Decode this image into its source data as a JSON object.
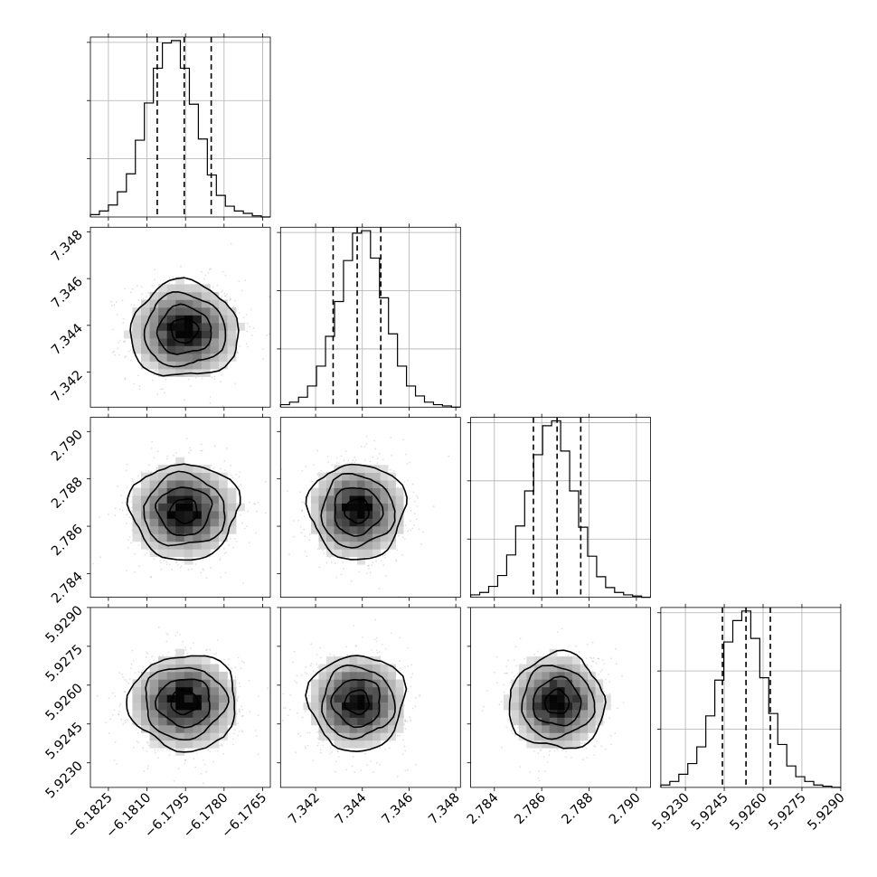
{
  "chart_data": {
    "type": "corner",
    "n_params": 4,
    "grid": true,
    "colors": {
      "line": "#000000",
      "grid": "#b0b0b0",
      "points": "#9a9a9a"
    },
    "parameters": [
      {
        "index": 0,
        "range": [
          -6.1832,
          -6.1762
        ],
        "ticks": [
          -6.1825,
          -6.181,
          -6.1795,
          -6.178,
          -6.1765
        ],
        "tick_labels": [
          "−6.1825",
          "−6.1810",
          "−6.1795",
          "−6.1780",
          "−6.1765"
        ],
        "mean": -6.17955,
        "sigma": 0.00105,
        "quantiles": [
          -6.1806,
          -6.17955,
          -6.1785
        ],
        "histogram": {
          "edges_start": -6.1832,
          "bin_width": 0.00035,
          "counts": [
            2,
            5,
            10,
            21,
            36,
            64,
            95,
            124,
            145,
            147,
            124,
            94,
            65,
            35,
            18,
            9,
            5,
            3,
            1,
            0
          ]
        }
      },
      {
        "index": 1,
        "range": [
          7.3405,
          7.3482
        ],
        "ticks": [
          7.342,
          7.344,
          7.346,
          7.348
        ],
        "tick_labels": [
          "7.342",
          "7.344",
          "7.346",
          "7.348"
        ],
        "mean": 7.34378,
        "sigma": 0.00103,
        "quantiles": [
          7.34275,
          7.34378,
          7.34479
        ],
        "histogram": {
          "edges_start": 7.3405,
          "bin_width": 0.000385,
          "counts": [
            2,
            4,
            8,
            17,
            33,
            57,
            85,
            118,
            140,
            142,
            120,
            88,
            59,
            33,
            17,
            9,
            4,
            2,
            1,
            0
          ]
        }
      },
      {
        "index": 2,
        "range": [
          2.783,
          2.7906
        ],
        "ticks": [
          2.784,
          2.786,
          2.788,
          2.79
        ],
        "tick_labels": [
          "2.784",
          "2.786",
          "2.788",
          "2.790"
        ],
        "mean": 2.78665,
        "sigma": 0.00101,
        "quantiles": [
          2.78565,
          2.78665,
          2.78765
        ],
        "histogram": {
          "edges_start": 2.783,
          "bin_width": 0.00038,
          "counts": [
            2,
            4,
            9,
            18,
            35,
            59,
            88,
            118,
            142,
            146,
            121,
            88,
            58,
            34,
            17,
            8,
            4,
            2,
            1,
            0
          ]
        }
      },
      {
        "index": 3,
        "range": [
          5.92205,
          5.929
        ],
        "ticks": [
          5.923,
          5.9245,
          5.926,
          5.9275,
          5.929
        ],
        "tick_labels": [
          "5.9230",
          "5.9245",
          "5.9260",
          "5.9275",
          "5.9290"
        ],
        "mean": 5.92534,
        "sigma": 0.00092,
        "quantiles": [
          5.92443,
          5.92534,
          5.92628
        ],
        "histogram": {
          "edges_start": 5.92205,
          "bin_width": 0.0003475,
          "counts": [
            2,
            5,
            11,
            20,
            34,
            60,
            90,
            122,
            140,
            148,
            125,
            92,
            62,
            36,
            18,
            9,
            5,
            2,
            1,
            0
          ]
        }
      }
    ],
    "contour_levels_sigma": [
      0.5,
      1.0,
      1.5,
      2.0
    ]
  }
}
